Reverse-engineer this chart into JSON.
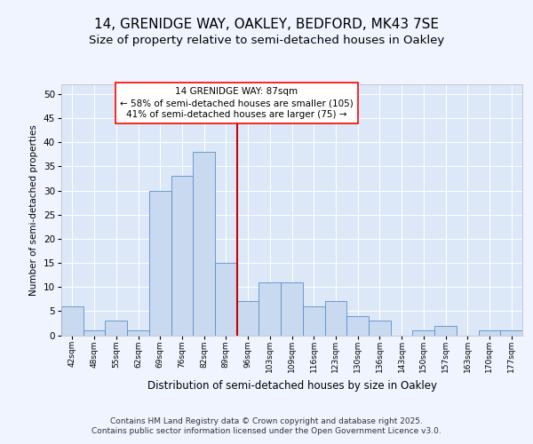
{
  "title1": "14, GRENIDGE WAY, OAKLEY, BEDFORD, MK43 7SE",
  "title2": "Size of property relative to semi-detached houses in Oakley",
  "xlabel": "Distribution of semi-detached houses by size in Oakley",
  "ylabel": "Number of semi-detached properties",
  "annotation_title": "14 GRENIDGE WAY: 87sqm",
  "annotation_line1": "← 58% of semi-detached houses are smaller (105)",
  "annotation_line2": "41% of semi-detached houses are larger (75) →",
  "bin_labels": [
    "42sqm",
    "48sqm",
    "55sqm",
    "62sqm",
    "69sqm",
    "76sqm",
    "82sqm",
    "89sqm",
    "96sqm",
    "103sqm",
    "109sqm",
    "116sqm",
    "123sqm",
    "130sqm",
    "136sqm",
    "143sqm",
    "150sqm",
    "157sqm",
    "163sqm",
    "170sqm",
    "177sqm"
  ],
  "bar_heights": [
    6,
    1,
    3,
    1,
    30,
    33,
    38,
    15,
    7,
    11,
    11,
    6,
    7,
    4,
    3,
    0,
    1,
    2,
    0,
    1,
    1
  ],
  "bar_color": "#c8d9f0",
  "bar_edge_color": "#5b8fc9",
  "vline_pos": 7.5,
  "vline_color": "#cc0000",
  "ylim_max": 52,
  "yticks": [
    0,
    5,
    10,
    15,
    20,
    25,
    30,
    35,
    40,
    45,
    50
  ],
  "bg_color": "#f0f4ff",
  "plot_bg": "#dce8f8",
  "footer": "Contains HM Land Registry data © Crown copyright and database right 2025.\nContains public sector information licensed under the Open Government Licence v3.0.",
  "title1_fontsize": 11,
  "title2_fontsize": 9.5,
  "annot_fontsize": 7.5,
  "footer_fontsize": 6.5,
  "ylabel_fontsize": 7.5,
  "xlabel_fontsize": 8.5
}
